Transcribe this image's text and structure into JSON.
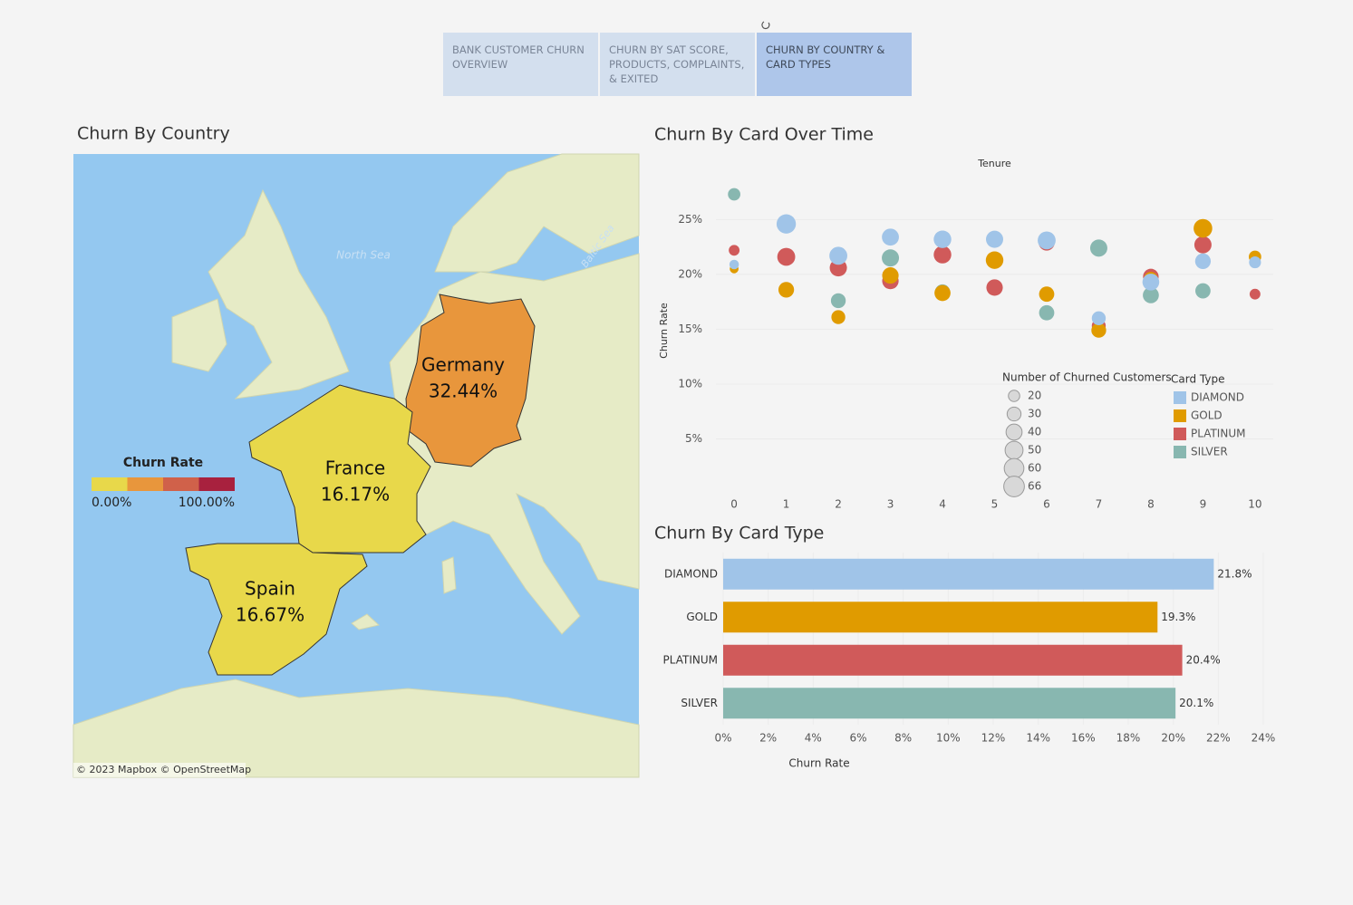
{
  "nav": {
    "tabs": [
      "BANK CUSTOMER CHURN OVERVIEW",
      "CHURN BY SAT SCORE, PRODUCTS, COMPLAINTS, & EXITED",
      "CHURN BY COUNTRY & CARD TYPES"
    ],
    "active": 2
  },
  "chart_data": [
    {
      "type": "map",
      "title": "Churn By Country",
      "regions": [
        "Germany",
        "France",
        "Spain"
      ],
      "values": [
        32.44,
        16.17,
        16.67
      ],
      "value_labels": [
        "32.44%",
        "16.17%",
        "16.67%"
      ],
      "color_scale": {
        "title": "Churn Rate",
        "colors": [
          "#e8d84a",
          "#e8963c",
          "#d0614a",
          "#a8213e"
        ],
        "lim": [
          0,
          100
        ],
        "ticks": [
          {
            "value": 0,
            "label": "0.00%"
          },
          {
            "value": 100,
            "label": "100.00%"
          }
        ]
      },
      "annotations": [
        "North Sea",
        "Baltic Sea"
      ],
      "attribution": "© 2023 Mapbox © OpenStreetMap"
    },
    {
      "type": "scatter",
      "title": "Churn By Card Over Time",
      "x_label": "Tenure",
      "y_label": "Churn Rate",
      "x": [
        0,
        1,
        2,
        3,
        4,
        5,
        6,
        7,
        8,
        9,
        10
      ],
      "xlim": [
        -0.35,
        10.35
      ],
      "xticks": [
        0,
        1,
        2,
        3,
        4,
        5,
        6,
        7,
        8,
        9,
        10
      ],
      "ylim": [
        0,
        28.5
      ],
      "yticks": [
        {
          "value": 5,
          "label": "5%"
        },
        {
          "value": 10,
          "label": "10%"
        },
        {
          "value": 15,
          "label": "15%"
        },
        {
          "value": 20,
          "label": "20%"
        },
        {
          "value": 25,
          "label": "25%"
        }
      ],
      "grid": true,
      "legend_title": "Card Type",
      "size_legend": {
        "title": "Number of Churned Customers",
        "values": [
          20,
          30,
          40,
          50,
          60,
          66
        ]
      },
      "series": [
        {
          "name": "DIAMOND",
          "color": "#a0c4e8",
          "values": [
            20.9,
            24.6,
            21.7,
            23.4,
            23.2,
            23.2,
            23.1,
            16.0,
            19.3,
            21.2,
            21.1
          ],
          "sizes": [
            14,
            58,
            50,
            45,
            48,
            46,
            50,
            30,
            44,
            38,
            22
          ]
        },
        {
          "name": "GOLD",
          "color": "#e09b00",
          "values": [
            20.5,
            18.6,
            16.1,
            19.9,
            18.3,
            21.3,
            18.2,
            14.9,
            19.6,
            24.2,
            21.6
          ],
          "sizes": [
            12,
            38,
            30,
            42,
            40,
            48,
            36,
            34,
            30,
            54,
            24
          ]
        },
        {
          "name": "PLATINUM",
          "color": "#d05a5a",
          "values": [
            22.2,
            21.6,
            20.6,
            19.4,
            21.8,
            18.8,
            22.9,
            15.3,
            19.8,
            22.7,
            18.2
          ],
          "sizes": [
            18,
            50,
            46,
            42,
            48,
            42,
            40,
            30,
            38,
            46,
            18
          ]
        },
        {
          "name": "SILVER",
          "color": "#88b7b0",
          "values": [
            27.3,
            24.5,
            17.6,
            21.5,
            18.4,
            23.2,
            16.5,
            22.4,
            18.1,
            18.5,
            21.2
          ],
          "sizes": [
            24,
            40,
            34,
            46,
            36,
            40,
            36,
            46,
            40,
            36,
            16
          ]
        }
      ]
    },
    {
      "type": "bar",
      "orientation": "horizontal",
      "title": "Churn By Card Type",
      "x_label": "Churn Rate",
      "categories": [
        "DIAMOND",
        "GOLD",
        "PLATINUM",
        "SILVER"
      ],
      "values": [
        21.8,
        19.3,
        20.4,
        20.1
      ],
      "value_labels": [
        "21.8%",
        "19.3%",
        "20.4%",
        "20.1%"
      ],
      "colors": [
        "#a0c4e8",
        "#e09b00",
        "#d05a5a",
        "#88b7b0"
      ],
      "xlim": [
        0,
        24
      ],
      "xticks": [
        {
          "value": 0,
          "label": "0%"
        },
        {
          "value": 2,
          "label": "2%"
        },
        {
          "value": 4,
          "label": "4%"
        },
        {
          "value": 6,
          "label": "6%"
        },
        {
          "value": 8,
          "label": "8%"
        },
        {
          "value": 10,
          "label": "10%"
        },
        {
          "value": 12,
          "label": "12%"
        },
        {
          "value": 14,
          "label": "14%"
        },
        {
          "value": 16,
          "label": "16%"
        },
        {
          "value": 18,
          "label": "18%"
        },
        {
          "value": 20,
          "label": "20%"
        },
        {
          "value": 22,
          "label": "22%"
        },
        {
          "value": 24,
          "label": "24%"
        }
      ],
      "grid": true
    }
  ]
}
